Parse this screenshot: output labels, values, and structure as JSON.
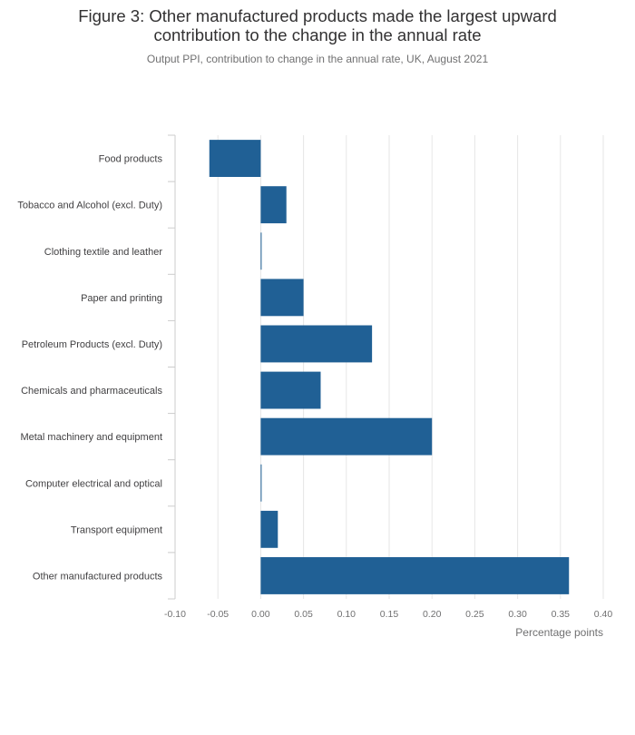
{
  "figure": {
    "title_line1": "Figure 3: Other manufactured products made the largest upward",
    "title_line2": "contribution to the change in the annual rate",
    "subtitle": "Output PPI, contribution to change in the annual rate, UK, August 2021"
  },
  "colors": {
    "bar": "#206095",
    "grid": "#e6e6e6",
    "axis": "#cccccc"
  },
  "chart_data": {
    "type": "bar",
    "orientation": "horizontal",
    "categories": [
      "Food products",
      "Tobacco and Alcohol (excl. Duty)",
      "Clothing textile and leather",
      "Paper and printing",
      "Petroleum Products (excl. Duty)",
      "Chemicals and pharmaceuticals",
      "Metal machinery and equipment",
      "Computer electrical and optical",
      "Transport equipment",
      "Other manufactured products"
    ],
    "values": [
      -0.06,
      0.03,
      0.0,
      0.05,
      0.13,
      0.07,
      0.2,
      0.0,
      0.02,
      0.36
    ],
    "xlabel": "Percentage points",
    "xlim": [
      -0.1,
      0.4
    ],
    "ticks": [
      "-0.10",
      "-0.05",
      "0.00",
      "0.05",
      "0.10",
      "0.15",
      "0.20",
      "0.25",
      "0.30",
      "0.35",
      "0.40"
    ],
    "grid": true
  }
}
